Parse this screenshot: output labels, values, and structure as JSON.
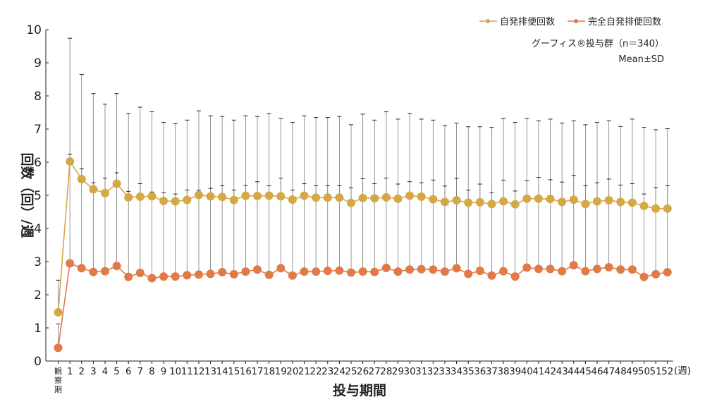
{
  "chart_data": {
    "type": "line",
    "xlabel": "投与期間",
    "ylabel": "回数（回）/週",
    "x_unit_label": "(週)",
    "baseline_label": "観察期",
    "ylim": [
      0,
      10
    ],
    "yticks": [
      "0",
      "1",
      "2",
      "3",
      "4",
      "5",
      "6",
      "7",
      "8",
      "9",
      "10"
    ],
    "categories": [
      "観察期",
      "1",
      "2",
      "3",
      "4",
      "5",
      "6",
      "7",
      "8",
      "9",
      "10",
      "11",
      "12",
      "13",
      "14",
      "15",
      "16",
      "17",
      "18",
      "19",
      "20",
      "21",
      "22",
      "23",
      "24",
      "25",
      "26",
      "27",
      "28",
      "29",
      "30",
      "31",
      "32",
      "33",
      "34",
      "35",
      "36",
      "37",
      "38",
      "39",
      "40",
      "41",
      "42",
      "43",
      "44",
      "45",
      "46",
      "47",
      "48",
      "49",
      "50",
      "51",
      "52"
    ],
    "grid": false,
    "legend_position": "top-right",
    "annotations": [
      "グーフィス®投与群（n＝340）",
      "Mean±SD"
    ],
    "series": [
      {
        "name": "自発排便回数",
        "color": "#d4a845",
        "values": [
          1.47,
          6.02,
          5.49,
          5.18,
          5.07,
          5.35,
          4.94,
          4.96,
          4.97,
          4.83,
          4.82,
          4.86,
          5.01,
          4.97,
          4.95,
          4.86,
          4.99,
          4.98,
          4.99,
          4.97,
          4.87,
          4.99,
          4.93,
          4.93,
          4.93,
          4.77,
          4.92,
          4.91,
          4.94,
          4.9,
          4.99,
          4.96,
          4.88,
          4.8,
          4.85,
          4.78,
          4.79,
          4.74,
          4.82,
          4.73,
          4.9,
          4.9,
          4.89,
          4.8,
          4.87,
          4.74,
          4.82,
          4.85,
          4.8,
          4.78,
          4.68,
          4.6,
          4.6
        ],
        "sd_upper": [
          2.44,
          9.74,
          8.65,
          8.07,
          7.75,
          8.07,
          7.47,
          7.66,
          7.52,
          7.2,
          7.16,
          7.27,
          7.55,
          7.4,
          7.38,
          7.27,
          7.4,
          7.38,
          7.47,
          7.32,
          7.2,
          7.4,
          7.35,
          7.35,
          7.38,
          7.13,
          7.45,
          7.27,
          7.52,
          7.3,
          7.47,
          7.3,
          7.27,
          7.11,
          7.18,
          7.07,
          7.07,
          7.05,
          7.32,
          7.2,
          7.32,
          7.25,
          7.3,
          7.18,
          7.25,
          7.13,
          7.2,
          7.25,
          7.08,
          7.3,
          7.05,
          6.98,
          7.01
        ]
      },
      {
        "name": "完全自発排便回数",
        "color": "#e07a47",
        "values": [
          0.4,
          2.95,
          2.8,
          2.69,
          2.71,
          2.87,
          2.54,
          2.66,
          2.5,
          2.55,
          2.55,
          2.59,
          2.61,
          2.63,
          2.68,
          2.62,
          2.7,
          2.76,
          2.6,
          2.8,
          2.58,
          2.7,
          2.7,
          2.72,
          2.73,
          2.67,
          2.7,
          2.69,
          2.81,
          2.7,
          2.76,
          2.77,
          2.76,
          2.7,
          2.8,
          2.63,
          2.72,
          2.58,
          2.71,
          2.55,
          2.82,
          2.78,
          2.78,
          2.71,
          2.89,
          2.71,
          2.78,
          2.83,
          2.76,
          2.76,
          2.54,
          2.62,
          2.68
        ],
        "sd_upper": [
          1.12,
          6.24,
          5.8,
          5.38,
          5.52,
          5.68,
          5.12,
          5.35,
          5.1,
          5.08,
          5.04,
          5.16,
          5.16,
          5.21,
          5.29,
          5.16,
          5.3,
          5.41,
          5.29,
          5.52,
          5.16,
          5.35,
          5.29,
          5.29,
          5.29,
          5.23,
          5.5,
          5.35,
          5.52,
          5.34,
          5.41,
          5.38,
          5.46,
          5.28,
          5.51,
          5.16,
          5.34,
          5.08,
          5.46,
          5.13,
          5.44,
          5.54,
          5.47,
          5.4,
          5.6,
          5.29,
          5.38,
          5.49,
          5.31,
          5.35,
          5.04,
          5.23,
          5.29
        ]
      }
    ]
  }
}
